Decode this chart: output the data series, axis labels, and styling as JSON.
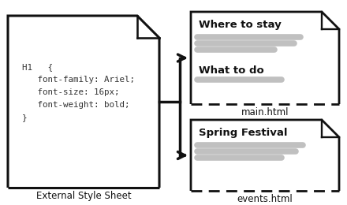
{
  "bg_color": "#ffffff",
  "css_code_lines": [
    "H1   {",
    "   font-family: Ariel;",
    "   font-size: 16px;",
    "   font-weight: bold;",
    "}"
  ],
  "css_label": "External Style Sheet",
  "main_label": "main.html",
  "events_label": "events.html",
  "top_doc_headings": [
    "Where to stay",
    "What to do"
  ],
  "bottom_doc_heading": "Spring Festival",
  "arrow_color": "#111111",
  "doc_border_color": "#111111",
  "line_color": "#c0c0c0",
  "code_font": "monospace",
  "label_fontsize": 8.5,
  "heading_fontsize": 9.5,
  "code_fontsize": 7.8
}
